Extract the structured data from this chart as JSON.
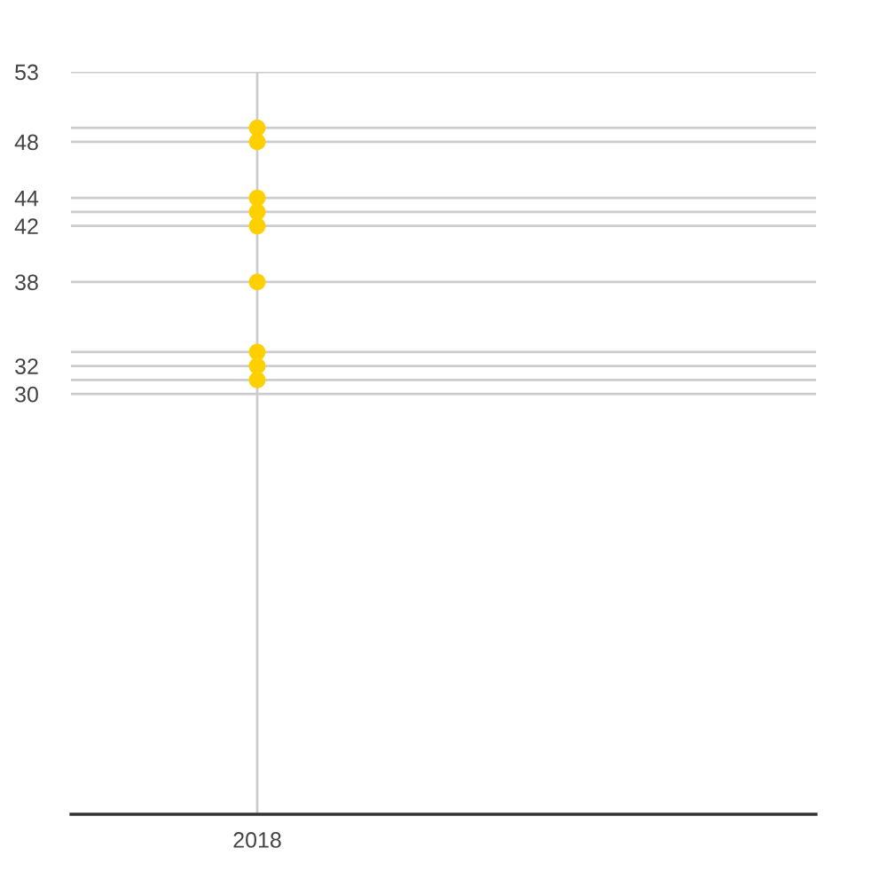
{
  "chart_data": {
    "type": "scatter",
    "categories": [
      "2018",
      null
    ],
    "series": [
      {
        "color": "#ffd000",
        "values": [
          49,
          null
        ]
      },
      {
        "color": "#ffd000",
        "values": [
          48,
          null
        ]
      },
      {
        "color": "#ffd000",
        "values": [
          44,
          null
        ]
      },
      {
        "color": "#ffd000",
        "values": [
          43,
          null
        ]
      },
      {
        "color": "#ffd000",
        "values": [
          42,
          null
        ]
      },
      {
        "color": "#ffd000",
        "values": [
          38,
          null
        ]
      },
      {
        "color": "#ffd000",
        "values": [
          33,
          null
        ]
      },
      {
        "color": "#ffd000",
        "values": [
          32,
          null
        ]
      },
      {
        "color": "#ffd000",
        "values": [
          31,
          null
        ]
      }
    ],
    "ylim": [
      0,
      53
    ],
    "yticks": [
      53,
      {
        "value": 49,
        "label": null
      },
      48,
      44,
      {
        "value": 43,
        "label": null
      },
      42,
      38,
      {
        "value": 33,
        "label": null
      },
      32,
      {
        "value": 31,
        "label": null
      },
      30
    ],
    "grid": true,
    "marker": "circle"
  }
}
